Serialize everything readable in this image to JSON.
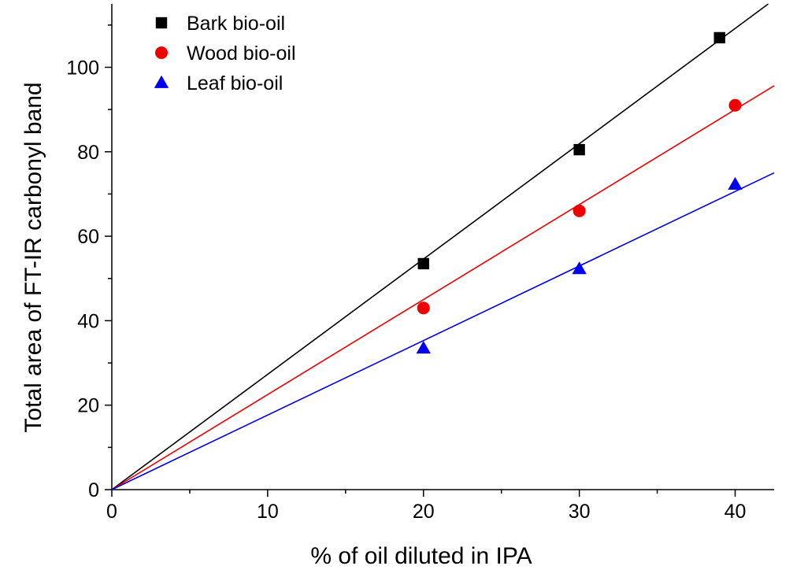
{
  "chart_data": {
    "type": "scatter",
    "title": "",
    "xlabel": "% of oil diluted in IPA",
    "ylabel": "Total area of FT-IR carbonyl band",
    "xlim": [
      0,
      42.5
    ],
    "ylim": [
      0,
      115
    ],
    "x_ticks": [
      "0",
      "10",
      "20",
      "30",
      "40"
    ],
    "y_ticks": [
      "0",
      "20",
      "40",
      "60",
      "80",
      "100"
    ],
    "legend_position": "top-left",
    "grid": false,
    "series": [
      {
        "name": "Bark bio-oil",
        "marker": "square",
        "color": "#000000",
        "x": [
          20,
          30,
          39
        ],
        "y": [
          53.5,
          80.5,
          107
        ],
        "fit_slope": 2.73
      },
      {
        "name": "Wood bio-oil",
        "marker": "circle",
        "color": "#ee0000",
        "x": [
          20,
          30,
          40
        ],
        "y": [
          43,
          66,
          91
        ],
        "fit_slope": 2.25
      },
      {
        "name": "Leaf bio-oil",
        "marker": "triangle",
        "color": "#0000ee",
        "x": [
          20,
          30,
          40
        ],
        "y": [
          33.5,
          52.3,
          72.3
        ],
        "fit_slope": 1.765
      }
    ]
  }
}
